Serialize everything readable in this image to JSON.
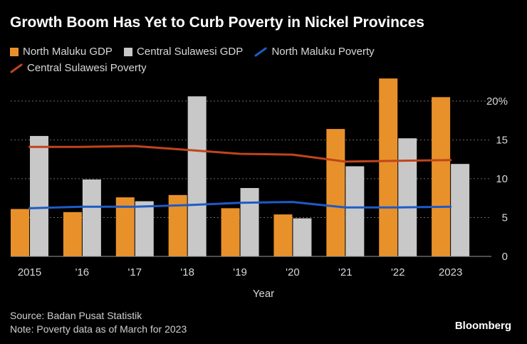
{
  "title": "Growth Boom Has Yet to Curb Poverty in Nickel Provinces",
  "legend": [
    {
      "label": "North Maluku GDP",
      "color": "#E8912A",
      "kind": "bar"
    },
    {
      "label": "Central Sulawesi GDP",
      "color": "#C8C8C8",
      "kind": "bar"
    },
    {
      "label": "North Maluku Poverty",
      "color": "#1E5BC6",
      "kind": "line"
    },
    {
      "label": "Central Sulawesi Poverty",
      "color": "#C0441C",
      "kind": "line"
    }
  ],
  "chart_data": {
    "type": "bar",
    "categories": [
      "2015",
      "'16",
      "'17",
      "'18",
      "'19",
      "'20",
      "'21",
      "'22",
      "2023"
    ],
    "xlabel": "Year",
    "ylabel": "",
    "ylim": [
      0,
      22
    ],
    "yticks": [
      0,
      5,
      10,
      15,
      20
    ],
    "ytick_labels": [
      "0",
      "5",
      "10",
      "15",
      "20%"
    ],
    "y_axis_side": "right",
    "grid": true,
    "series": [
      {
        "name": "North Maluku GDP",
        "kind": "bar",
        "color": "#E8912A",
        "values": [
          6.1,
          5.7,
          7.6,
          7.9,
          6.2,
          5.4,
          16.4,
          22.9,
          20.5
        ]
      },
      {
        "name": "Central Sulawesi GDP",
        "kind": "bar",
        "color": "#C8C8C8",
        "values": [
          15.5,
          9.9,
          7.1,
          20.6,
          8.8,
          4.9,
          11.6,
          15.2,
          11.9
        ]
      },
      {
        "name": "North Maluku Poverty",
        "kind": "line",
        "color": "#1E5BC6",
        "values": [
          6.2,
          6.4,
          6.4,
          6.6,
          6.9,
          7.0,
          6.3,
          6.3,
          6.4
        ]
      },
      {
        "name": "Central Sulawesi Poverty",
        "kind": "line",
        "color": "#C0441C",
        "values": [
          14.1,
          14.1,
          14.2,
          13.7,
          13.2,
          13.1,
          12.2,
          12.3,
          12.4
        ]
      }
    ]
  },
  "footer": {
    "source": "Source: Badan Pusat Statistik",
    "note": "Note: Poverty data as of March for 2023"
  },
  "brand": "Bloomberg"
}
